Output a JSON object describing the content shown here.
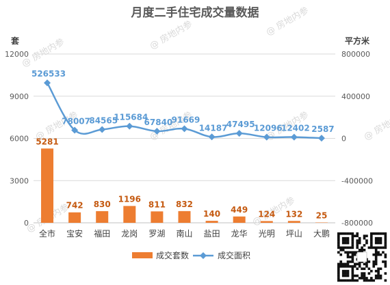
{
  "chart_data": {
    "type": "bar",
    "title": "月度二手住宅成交量数据",
    "categories": [
      "全市",
      "宝安",
      "福田",
      "龙岗",
      "罗湖",
      "南山",
      "盐田",
      "龙华",
      "光明",
      "坪山",
      "大鹏"
    ],
    "series": [
      {
        "name": "成交套数",
        "chart": "bar",
        "axis": "left",
        "color": "#ed7d31",
        "values": [
          5281,
          742,
          830,
          1196,
          811,
          832,
          140,
          449,
          124,
          132,
          25
        ]
      },
      {
        "name": "成交面积",
        "chart": "line",
        "axis": "right",
        "color": "#5b9bd5",
        "values": [
          526533,
          78007,
          84565,
          115684,
          67840,
          91669,
          14187,
          47495,
          12096,
          12402,
          2587
        ]
      }
    ],
    "y_left": {
      "label": "套",
      "range": [
        0,
        12000
      ],
      "ticks": [
        0,
        3000,
        6000,
        9000,
        12000
      ]
    },
    "y_right": {
      "label": "平方米",
      "range": [
        -800000,
        800000
      ],
      "ticks": [
        -800000,
        -400000,
        0,
        400000,
        800000
      ]
    },
    "grid": true,
    "legend": "bottom"
  },
  "watermark": "房地内参"
}
